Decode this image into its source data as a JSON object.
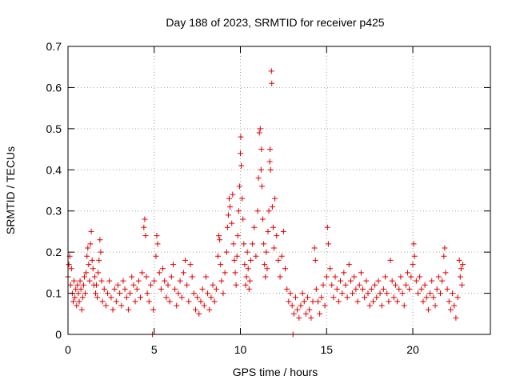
{
  "chart_data": {
    "type": "scatter",
    "title": "Day 188 of 2023, SRMTID for receiver p425",
    "xlabel": "GPS time / hours",
    "ylabel": "SRMTID / TECUs",
    "xlim": [
      0,
      24.5
    ],
    "ylim": [
      0,
      0.7
    ],
    "xticks": [
      0,
      5,
      10,
      15,
      20
    ],
    "xtick_labels": [
      "0",
      "5",
      "10",
      "15",
      "20"
    ],
    "yticks": [
      0,
      0.1,
      0.2,
      0.3,
      0.4,
      0.5,
      0.6,
      0.7
    ],
    "ytick_labels": [
      "0",
      "0.1",
      "0.2",
      "0.3",
      "0.4",
      "0.5",
      "0.6",
      "0.7"
    ],
    "grid": true,
    "marker": "plus",
    "color": "#e00000",
    "series": [
      {
        "name": "SRMTID",
        "points": [
          [
            0.0,
            0.14
          ],
          [
            0.05,
            0.17
          ],
          [
            0.1,
            0.19
          ],
          [
            0.15,
            0.12
          ],
          [
            0.2,
            0.16
          ],
          [
            0.25,
            0.1
          ],
          [
            0.3,
            0.08
          ],
          [
            0.35,
            0.13
          ],
          [
            0.4,
            0.09
          ],
          [
            0.45,
            0.11
          ],
          [
            0.5,
            0.07
          ],
          [
            0.55,
            0.12
          ],
          [
            0.6,
            0.1
          ],
          [
            0.65,
            0.08
          ],
          [
            0.7,
            0.13
          ],
          [
            0.75,
            0.11
          ],
          [
            0.8,
            0.06
          ],
          [
            0.85,
            0.09
          ],
          [
            0.9,
            0.12
          ],
          [
            0.95,
            0.14
          ],
          [
            1.0,
            0.1
          ],
          [
            1.05,
            0.15
          ],
          [
            1.1,
            0.19
          ],
          [
            1.15,
            0.21
          ],
          [
            1.2,
            0.17
          ],
          [
            1.25,
            0.13
          ],
          [
            1.3,
            0.22
          ],
          [
            1.35,
            0.25
          ],
          [
            1.4,
            0.18
          ],
          [
            1.45,
            0.16
          ],
          [
            1.5,
            0.12
          ],
          [
            1.55,
            0.14
          ],
          [
            1.6,
            0.1
          ],
          [
            1.65,
            0.12
          ],
          [
            1.7,
            0.09
          ],
          [
            1.75,
            0.15
          ],
          [
            1.8,
            0.18
          ],
          [
            1.85,
            0.23
          ],
          [
            1.9,
            0.2
          ],
          [
            1.95,
            0.13
          ],
          [
            2.0,
            0.08
          ],
          [
            2.1,
            0.11
          ],
          [
            2.2,
            0.07
          ],
          [
            2.3,
            0.1
          ],
          [
            2.4,
            0.13
          ],
          [
            2.5,
            0.09
          ],
          [
            2.6,
            0.06
          ],
          [
            2.7,
            0.11
          ],
          [
            2.8,
            0.08
          ],
          [
            2.9,
            0.12
          ],
          [
            3.0,
            0.1
          ],
          [
            3.1,
            0.07
          ],
          [
            3.2,
            0.13
          ],
          [
            3.3,
            0.11
          ],
          [
            3.4,
            0.09
          ],
          [
            3.5,
            0.06
          ],
          [
            3.6,
            0.1
          ],
          [
            3.7,
            0.14
          ],
          [
            3.8,
            0.12
          ],
          [
            3.9,
            0.08
          ],
          [
            4.0,
            0.11
          ],
          [
            4.1,
            0.13
          ],
          [
            4.2,
            0.09
          ],
          [
            4.3,
            0.15
          ],
          [
            4.4,
            0.26
          ],
          [
            4.45,
            0.28
          ],
          [
            4.5,
            0.24
          ],
          [
            4.55,
            0.14
          ],
          [
            4.6,
            0.1
          ],
          [
            4.7,
            0.08
          ],
          [
            4.8,
            0.12
          ],
          [
            4.9,
            0.0
          ],
          [
            4.95,
            0.06
          ],
          [
            5.0,
            0.13
          ],
          [
            5.1,
            0.19
          ],
          [
            5.15,
            0.24
          ],
          [
            5.2,
            0.22
          ],
          [
            5.3,
            0.15
          ],
          [
            5.4,
            0.11
          ],
          [
            5.5,
            0.16
          ],
          [
            5.6,
            0.13
          ],
          [
            5.7,
            0.09
          ],
          [
            5.8,
            0.12
          ],
          [
            5.9,
            0.08
          ],
          [
            6.0,
            0.14
          ],
          [
            6.1,
            0.17
          ],
          [
            6.2,
            0.11
          ],
          [
            6.3,
            0.07
          ],
          [
            6.4,
            0.1
          ],
          [
            6.5,
            0.13
          ],
          [
            6.6,
            0.09
          ],
          [
            6.7,
            0.15
          ],
          [
            6.8,
            0.18
          ],
          [
            6.9,
            0.12
          ],
          [
            7.0,
            0.08
          ],
          [
            7.1,
            0.17
          ],
          [
            7.2,
            0.14
          ],
          [
            7.3,
            0.1
          ],
          [
            7.4,
            0.06
          ],
          [
            7.5,
            0.09
          ],
          [
            7.6,
            0.05
          ],
          [
            7.7,
            0.08
          ],
          [
            7.8,
            0.11
          ],
          [
            7.9,
            0.07
          ],
          [
            8.0,
            0.14
          ],
          [
            8.1,
            0.1
          ],
          [
            8.2,
            0.06
          ],
          [
            8.3,
            0.09
          ],
          [
            8.4,
            0.12
          ],
          [
            8.5,
            0.08
          ],
          [
            8.6,
            0.11
          ],
          [
            8.7,
            0.19
          ],
          [
            8.75,
            0.24
          ],
          [
            8.8,
            0.23
          ],
          [
            8.85,
            0.17
          ],
          [
            8.9,
            0.13
          ],
          [
            9.0,
            0.1
          ],
          [
            9.1,
            0.15
          ],
          [
            9.2,
            0.2
          ],
          [
            9.25,
            0.26
          ],
          [
            9.3,
            0.29
          ],
          [
            9.35,
            0.33
          ],
          [
            9.4,
            0.31
          ],
          [
            9.5,
            0.27
          ],
          [
            9.55,
            0.34
          ],
          [
            9.6,
            0.22
          ],
          [
            9.65,
            0.18
          ],
          [
            9.7,
            0.15
          ],
          [
            9.75,
            0.12
          ],
          [
            9.8,
            0.19
          ],
          [
            9.85,
            0.24
          ],
          [
            9.9,
            0.3
          ],
          [
            9.95,
            0.36
          ],
          [
            10.0,
            0.44
          ],
          [
            10.02,
            0.48
          ],
          [
            10.05,
            0.41
          ],
          [
            10.1,
            0.33
          ],
          [
            10.15,
            0.28
          ],
          [
            10.2,
            0.22
          ],
          [
            10.25,
            0.17
          ],
          [
            10.3,
            0.12
          ],
          [
            10.35,
            0.14
          ],
          [
            10.4,
            0.2
          ],
          [
            10.45,
            0.16
          ],
          [
            10.5,
            0.11
          ],
          [
            10.55,
            0.13
          ],
          [
            10.6,
            0.18
          ],
          [
            10.7,
            0.22
          ],
          [
            10.8,
            0.26
          ],
          [
            10.9,
            0.19
          ],
          [
            11.0,
            0.3
          ],
          [
            11.05,
            0.38
          ],
          [
            11.1,
            0.49
          ],
          [
            11.15,
            0.5
          ],
          [
            11.2,
            0.4
          ],
          [
            11.22,
            0.45
          ],
          [
            11.25,
            0.36
          ],
          [
            11.3,
            0.28
          ],
          [
            11.35,
            0.22
          ],
          [
            11.4,
            0.17
          ],
          [
            11.45,
            0.14
          ],
          [
            11.5,
            0.2
          ],
          [
            11.55,
            0.16
          ],
          [
            11.6,
            0.25
          ],
          [
            11.65,
            0.3
          ],
          [
            11.7,
            0.42
          ],
          [
            11.72,
            0.45
          ],
          [
            11.75,
            0.4
          ],
          [
            11.8,
            0.64
          ],
          [
            11.82,
            0.61
          ],
          [
            11.85,
            0.31
          ],
          [
            11.9,
            0.26
          ],
          [
            11.95,
            0.21
          ],
          [
            12.0,
            0.33
          ],
          [
            12.1,
            0.24
          ],
          [
            12.2,
            0.18
          ],
          [
            12.3,
            0.14
          ],
          [
            12.4,
            0.19
          ],
          [
            12.5,
            0.25
          ],
          [
            12.6,
            0.16
          ],
          [
            12.7,
            0.11
          ],
          [
            12.8,
            0.08
          ],
          [
            12.9,
            0.1
          ],
          [
            13.0,
            0.07
          ],
          [
            13.05,
            0.0
          ],
          [
            13.1,
            0.05
          ],
          [
            13.2,
            0.09
          ],
          [
            13.3,
            0.06
          ],
          [
            13.4,
            0.04
          ],
          [
            13.5,
            0.07
          ],
          [
            13.6,
            0.1
          ],
          [
            13.7,
            0.08
          ],
          [
            13.8,
            0.05
          ],
          [
            13.9,
            0.09
          ],
          [
            14.0,
            0.06
          ],
          [
            14.1,
            0.04
          ],
          [
            14.2,
            0.08
          ],
          [
            14.3,
            0.21
          ],
          [
            14.35,
            0.18
          ],
          [
            14.4,
            0.11
          ],
          [
            14.5,
            0.08
          ],
          [
            14.6,
            0.05
          ],
          [
            14.7,
            0.09
          ],
          [
            14.8,
            0.12
          ],
          [
            14.9,
            0.07
          ],
          [
            15.0,
            0.14
          ],
          [
            15.05,
            0.26
          ],
          [
            15.1,
            0.22
          ],
          [
            15.2,
            0.16
          ],
          [
            15.3,
            0.12
          ],
          [
            15.4,
            0.09
          ],
          [
            15.5,
            0.14
          ],
          [
            15.6,
            0.11
          ],
          [
            15.7,
            0.08
          ],
          [
            15.8,
            0.13
          ],
          [
            15.9,
            0.1
          ],
          [
            16.0,
            0.15
          ],
          [
            16.1,
            0.12
          ],
          [
            16.2,
            0.09
          ],
          [
            16.3,
            0.17
          ],
          [
            16.4,
            0.13
          ],
          [
            16.5,
            0.1
          ],
          [
            16.6,
            0.14
          ],
          [
            16.7,
            0.11
          ],
          [
            16.8,
            0.08
          ],
          [
            16.9,
            0.12
          ],
          [
            17.0,
            0.15
          ],
          [
            17.1,
            0.11
          ],
          [
            17.2,
            0.09
          ],
          [
            17.3,
            0.13
          ],
          [
            17.4,
            0.1
          ],
          [
            17.5,
            0.07
          ],
          [
            17.6,
            0.11
          ],
          [
            17.7,
            0.08
          ],
          [
            17.8,
            0.12
          ],
          [
            17.9,
            0.09
          ],
          [
            18.0,
            0.13
          ],
          [
            18.1,
            0.1
          ],
          [
            18.2,
            0.07
          ],
          [
            18.3,
            0.11
          ],
          [
            18.4,
            0.14
          ],
          [
            18.5,
            0.1
          ],
          [
            18.6,
            0.08
          ],
          [
            18.7,
            0.18
          ],
          [
            18.8,
            0.13
          ],
          [
            18.9,
            0.09
          ],
          [
            19.0,
            0.12
          ],
          [
            19.1,
            0.08
          ],
          [
            19.2,
            0.11
          ],
          [
            19.3,
            0.14
          ],
          [
            19.4,
            0.1
          ],
          [
            19.5,
            0.07
          ],
          [
            19.6,
            0.12
          ],
          [
            19.7,
            0.15
          ],
          [
            19.8,
            0.11
          ],
          [
            19.9,
            0.14
          ],
          [
            20.0,
            0.17
          ],
          [
            20.05,
            0.22
          ],
          [
            20.1,
            0.19
          ],
          [
            20.2,
            0.13
          ],
          [
            20.3,
            0.1
          ],
          [
            20.4,
            0.14
          ],
          [
            20.5,
            0.11
          ],
          [
            20.6,
            0.08
          ],
          [
            20.7,
            0.12
          ],
          [
            20.8,
            0.09
          ],
          [
            20.9,
            0.06
          ],
          [
            21.0,
            0.1
          ],
          [
            21.1,
            0.13
          ],
          [
            21.2,
            0.09
          ],
          [
            21.3,
            0.07
          ],
          [
            21.4,
            0.11
          ],
          [
            21.5,
            0.14
          ],
          [
            21.6,
            0.1
          ],
          [
            21.7,
            0.13
          ],
          [
            21.8,
            0.19
          ],
          [
            21.85,
            0.21
          ],
          [
            21.9,
            0.15
          ],
          [
            22.0,
            0.11
          ],
          [
            22.1,
            0.08
          ],
          [
            22.2,
            0.06
          ],
          [
            22.3,
            0.1
          ],
          [
            22.4,
            0.07
          ],
          [
            22.5,
            0.04
          ],
          [
            22.6,
            0.09
          ],
          [
            22.7,
            0.18
          ],
          [
            22.75,
            0.14
          ],
          [
            22.8,
            0.16
          ],
          [
            22.85,
            0.12
          ],
          [
            22.9,
            0.17
          ]
        ]
      }
    ]
  }
}
